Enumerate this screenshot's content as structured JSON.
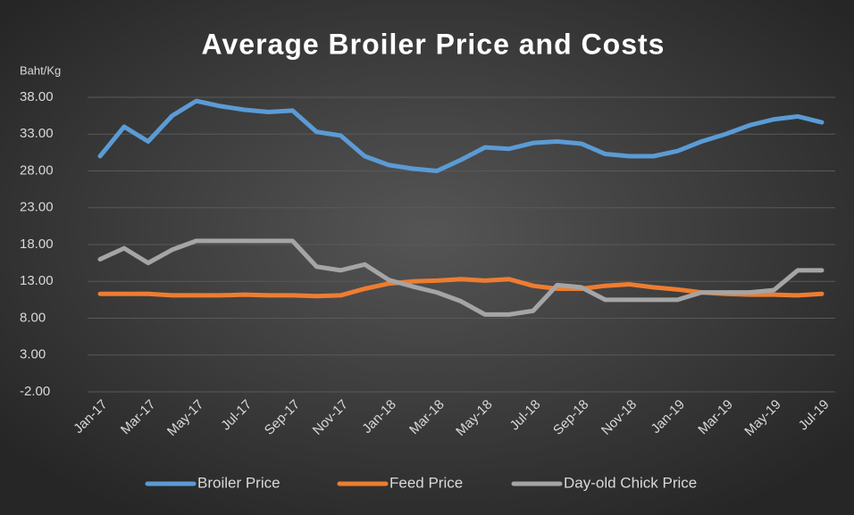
{
  "chart_data": {
    "type": "line",
    "title": "Average Broiler Price and Costs",
    "y_label": "Baht/Kg",
    "categories": [
      "Jan-17",
      null,
      "Mar-17",
      null,
      "May-17",
      null,
      "Jul-17",
      null,
      "Sep-17",
      null,
      "Nov-17",
      null,
      "Jan-18",
      null,
      "Mar-18",
      null,
      "May-18",
      null,
      "Jul-18",
      null,
      "Sep-18",
      null,
      "Nov-18",
      null,
      "Jan-19",
      null,
      "Mar-19",
      null,
      "May-19",
      null,
      "Jul-19"
    ],
    "series": [
      {
        "name": "Broiler Price",
        "color": "#5b9bd5",
        "values": [
          30,
          34,
          32,
          35.5,
          37.5,
          36.8,
          36.3,
          36,
          36.2,
          33.3,
          32.8,
          30,
          28.8,
          28.3,
          28,
          29.5,
          31.2,
          31,
          31.8,
          32,
          31.7,
          30.3,
          30,
          30,
          30.7,
          32,
          33,
          34.2,
          35,
          35.4,
          34.6
        ]
      },
      {
        "name": "Feed Price",
        "color": "#ed7d31",
        "values": [
          11.3,
          11.3,
          11.3,
          11.1,
          11.1,
          11.1,
          11.2,
          11.1,
          11.1,
          11,
          11.1,
          12,
          12.7,
          13,
          13.1,
          13.3,
          13.1,
          13.3,
          12.4,
          12,
          12,
          12.4,
          12.6,
          12.2,
          11.9,
          11.5,
          11.3,
          11.2,
          11.2,
          11.1,
          11.3
        ]
      },
      {
        "name": "Day-old Chick Price",
        "color": "#a5a5a5",
        "values": [
          16,
          17.5,
          15.5,
          17.3,
          18.5,
          18.5,
          18.5,
          18.5,
          18.5,
          15,
          14.5,
          15.3,
          13.2,
          12.3,
          11.5,
          10.3,
          8.5,
          8.5,
          9,
          12.5,
          12.2,
          10.5,
          10.5,
          10.5,
          10.5,
          11.5,
          11.5,
          11.5,
          11.8,
          14.5,
          14.5
        ]
      }
    ],
    "ylim": [
      -2,
      38
    ],
    "yticks": [
      {
        "value": -2,
        "label": "-2.00"
      },
      {
        "value": 3,
        "label": "3.00"
      },
      {
        "value": 8,
        "label": "8.00"
      },
      {
        "value": 13,
        "label": "13.00"
      },
      {
        "value": 18,
        "label": "18.00"
      },
      {
        "value": 23,
        "label": "23.00"
      },
      {
        "value": 28,
        "label": "28.00"
      },
      {
        "value": 33,
        "label": "33.00"
      },
      {
        "value": 38,
        "label": "38.00"
      }
    ],
    "grid": true,
    "legend": "bottom"
  }
}
